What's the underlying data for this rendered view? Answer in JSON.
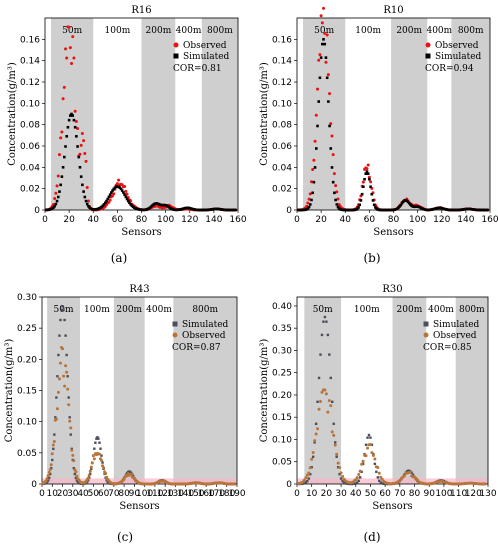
{
  "chart_data": [
    {
      "panel": "(a)",
      "type": "scatter",
      "title": "R16",
      "xlabel": "Sensors",
      "ylabel": "Concentration(g/m³)",
      "xlim": [
        0,
        160
      ],
      "ylim": [
        0,
        0.18
      ],
      "xticks": [
        "0",
        "20",
        "40",
        "60",
        "80",
        "100",
        "120",
        "140",
        "160"
      ],
      "yticks": [
        "0",
        "0.02",
        "0.04",
        "0.06",
        "0.08",
        "0.10",
        "0.12",
        "0.14",
        "0.16"
      ],
      "bands": [
        {
          "label": "50m",
          "x": [
            5,
            40
          ],
          "shaded": true
        },
        {
          "label": "100m",
          "x": [
            40,
            80
          ],
          "shaded": false
        },
        {
          "label": "200m",
          "x": [
            80,
            108
          ],
          "shaded": true
        },
        {
          "label": "400m",
          "x": [
            108,
            130
          ],
          "shaded": false
        },
        {
          "label": "800m",
          "x": [
            130,
            160
          ],
          "shaded": true
        }
      ],
      "legend_position": "top-right",
      "annotation": "COR=0.81",
      "peaks": {
        "Observed": [
          [
            5,
            20,
            0.172,
            5.0
          ],
          [
            5,
            32,
            0.06,
            2.0
          ],
          [
            40,
            62,
            0.025,
            6.0
          ],
          [
            80,
            92,
            0.004,
            3.5
          ],
          [
            80,
            103,
            0.004,
            3.0
          ],
          [
            108,
            117,
            0.001,
            3.5
          ],
          [
            130,
            142,
            0.001,
            3.5
          ]
        ],
        "Simulated": [
          [
            5,
            22,
            0.09,
            5.5
          ],
          [
            40,
            60,
            0.022,
            6.5
          ],
          [
            80,
            92,
            0.006,
            3.5
          ],
          [
            80,
            100,
            0.004,
            3.0
          ],
          [
            108,
            118,
            0.002,
            3.5
          ],
          [
            130,
            142,
            0.001,
            3.5
          ]
        ]
      },
      "series": [
        {
          "name": "Observed",
          "color": "#ee1111"
        },
        {
          "name": "Simulated",
          "color": "#000000"
        }
      ]
    },
    {
      "panel": "(b)",
      "type": "scatter",
      "title": "R10",
      "xlabel": "Sensors",
      "ylabel": "Concentration(g/m³)",
      "xlim": [
        0,
        160
      ],
      "ylim": [
        0,
        0.18
      ],
      "xticks": [
        "0",
        "20",
        "40",
        "60",
        "80",
        "100",
        "120",
        "140",
        "160"
      ],
      "yticks": [
        "0",
        "0.02",
        "0.04",
        "0.06",
        "0.08",
        "0.10",
        "0.12",
        "0.14",
        "0.16"
      ],
      "bands": [
        {
          "label": "50m",
          "x": [
            5,
            40
          ],
          "shaded": true
        },
        {
          "label": "100m",
          "x": [
            40,
            78
          ],
          "shaded": false
        },
        {
          "label": "200m",
          "x": [
            78,
            108
          ],
          "shaded": true
        },
        {
          "label": "400m",
          "x": [
            108,
            128
          ],
          "shaded": false
        },
        {
          "label": "800m",
          "x": [
            128,
            160
          ],
          "shaded": true
        }
      ],
      "legend_position": "top-right",
      "annotation": "COR=0.94",
      "peaks": {
        "Observed": [
          [
            5,
            22,
            0.172,
            5.0
          ],
          [
            40,
            58,
            0.04,
            3.5
          ],
          [
            78,
            90,
            0.01,
            3.5
          ],
          [
            78,
            100,
            0.004,
            3.0
          ],
          [
            108,
            118,
            0.002,
            3.5
          ],
          [
            128,
            142,
            0.001,
            3.5
          ]
        ],
        "Simulated": [
          [
            5,
            22,
            0.16,
            4.2
          ],
          [
            40,
            58,
            0.036,
            3.0
          ],
          [
            78,
            90,
            0.009,
            3.5
          ],
          [
            78,
            100,
            0.003,
            3.0
          ],
          [
            108,
            118,
            0.002,
            3.5
          ],
          [
            128,
            142,
            0.001,
            3.5
          ]
        ]
      },
      "series": [
        {
          "name": "Observed",
          "color": "#ee1111"
        },
        {
          "name": "Simulated",
          "color": "#000000"
        }
      ]
    },
    {
      "panel": "(c)",
      "type": "scatter",
      "title": "R43",
      "xlabel": "Sensors",
      "ylabel": "Concentration(g/m³)",
      "xlim": [
        0,
        190
      ],
      "ylim": [
        0,
        0.3
      ],
      "xticks": [
        "0",
        "10",
        "20",
        "30",
        "40",
        "50",
        "60",
        "70",
        "80",
        "90",
        "100",
        "110",
        "120",
        "130",
        "140",
        "150",
        "160",
        "170",
        "180",
        "190"
      ],
      "yticks": [
        "0",
        "0.05",
        "0.10",
        "0.15",
        "0.20",
        "0.25",
        "0.30"
      ],
      "bands": [
        {
          "label": "50m",
          "x": [
            5,
            37
          ],
          "shaded": true
        },
        {
          "label": "100m",
          "x": [
            37,
            70
          ],
          "shaded": false
        },
        {
          "label": "200m",
          "x": [
            70,
            100
          ],
          "shaded": true
        },
        {
          "label": "400m",
          "x": [
            100,
            128
          ],
          "shaded": false
        },
        {
          "label": "800m",
          "x": [
            128,
            190
          ],
          "shaded": true
        }
      ],
      "legend_position": "top-right",
      "annotation": "COR=0.87",
      "peaks": {
        "Simulated": [
          [
            5,
            20,
            0.285,
            5.0
          ],
          [
            37,
            54,
            0.075,
            4.0
          ],
          [
            70,
            85,
            0.02,
            4.0
          ],
          [
            100,
            117,
            0.006,
            3.5
          ],
          [
            128,
            150,
            0.002,
            4.0
          ],
          [
            128,
            172,
            0.002,
            4.0
          ]
        ],
        "Observed": [
          [
            5,
            20,
            0.195,
            6.0
          ],
          [
            37,
            54,
            0.055,
            5.0
          ],
          [
            70,
            85,
            0.016,
            4.5
          ],
          [
            100,
            117,
            0.005,
            3.5
          ],
          [
            128,
            150,
            0.002,
            4.0
          ],
          [
            128,
            172,
            0.002,
            4.0
          ]
        ]
      },
      "series": [
        {
          "name": "Simulated",
          "color": "#4a4f5c"
        },
        {
          "name": "Observed",
          "color": "#b8743a"
        }
      ]
    },
    {
      "panel": "(d)",
      "type": "scatter",
      "title": "R30",
      "xlabel": "Sensors",
      "ylabel": "Concentration(g/m³)",
      "xlim": [
        0,
        130
      ],
      "ylim": [
        0,
        0.42
      ],
      "xticks": [
        "0",
        "10",
        "20",
        "30",
        "40",
        "50",
        "60",
        "70",
        "80",
        "90",
        "100",
        "110",
        "120",
        "130"
      ],
      "yticks": [
        "0",
        "0.05",
        "0.10",
        "0.15",
        "0.20",
        "0.25",
        "0.30",
        "0.35",
        "0.40"
      ],
      "bands": [
        {
          "label": "50m",
          "x": [
            5,
            30
          ],
          "shaded": true
        },
        {
          "label": "100m",
          "x": [
            30,
            65
          ],
          "shaded": false
        },
        {
          "label": "200m",
          "x": [
            65,
            88
          ],
          "shaded": true
        },
        {
          "label": "400m",
          "x": [
            88,
            108
          ],
          "shaded": false
        },
        {
          "label": "800m",
          "x": [
            108,
            130
          ],
          "shaded": true
        }
      ],
      "legend_position": "top-right",
      "annotation": "COR=0.85",
      "peaks": {
        "Simulated": [
          [
            5,
            19,
            0.375,
            4.2
          ],
          [
            30,
            49,
            0.11,
            3.0
          ],
          [
            65,
            76,
            0.03,
            3.5
          ],
          [
            88,
            98,
            0.008,
            3.0
          ],
          [
            108,
            118,
            0.002,
            3.0
          ]
        ],
        "Observed": [
          [
            5,
            19,
            0.2,
            5.5
          ],
          [
            30,
            49,
            0.08,
            4.5
          ],
          [
            65,
            76,
            0.024,
            4.0
          ],
          [
            88,
            98,
            0.006,
            3.0
          ],
          [
            108,
            118,
            0.002,
            3.0
          ]
        ]
      },
      "series": [
        {
          "name": "Simulated",
          "color": "#4a4f5c"
        },
        {
          "name": "Observed",
          "color": "#b8743a"
        }
      ]
    }
  ]
}
